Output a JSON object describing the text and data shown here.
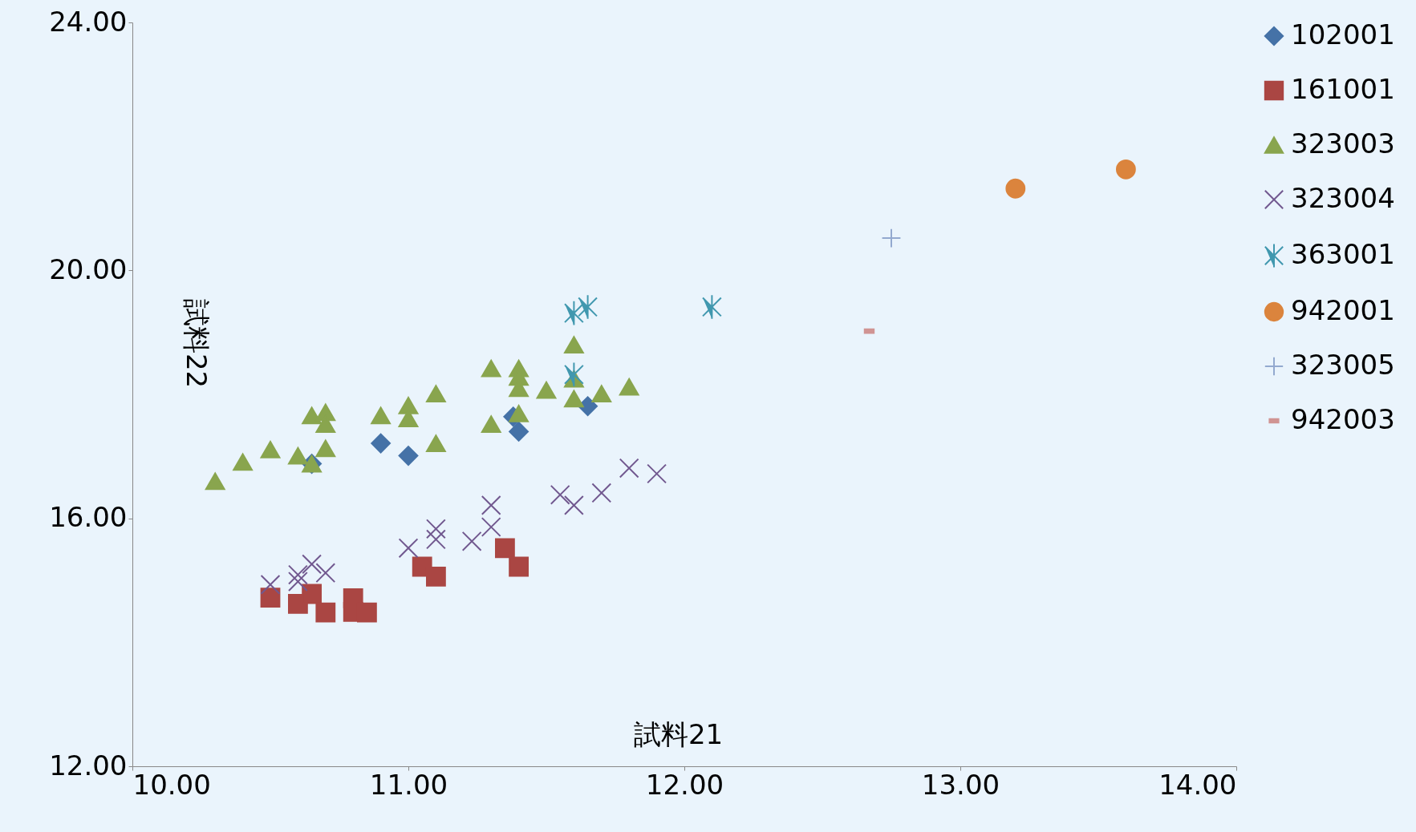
{
  "chart_data": {
    "type": "scatter",
    "xlabel": "試料21",
    "ylabel": "試料22",
    "legend": "right",
    "grid": false,
    "xlim": [
      10,
      14
    ],
    "xticks": [
      {
        "value": 10,
        "label": "10.00"
      },
      {
        "value": 11,
        "label": "11.00"
      },
      {
        "value": 12,
        "label": "12.00"
      },
      {
        "value": 13,
        "label": "13.00"
      },
      {
        "value": 14,
        "label": "14.00"
      }
    ],
    "ylim": [
      12,
      24
    ],
    "yticks": [
      {
        "value": 12,
        "label": "12.00"
      },
      {
        "value": 16,
        "label": "16.00"
      },
      {
        "value": 20,
        "label": "20.00"
      },
      {
        "value": 24,
        "label": "24.00"
      }
    ],
    "series": [
      {
        "name": "102001",
        "color": "#4572a7",
        "marker": "diamond",
        "x": [
          10.65,
          10.9,
          11.0,
          11.38,
          11.4,
          11.65
        ],
        "values": [
          16.88,
          17.21,
          17.01,
          17.64,
          17.4,
          17.81
        ]
      },
      {
        "name": "161001",
        "color": "#aa4643",
        "marker": "square",
        "x": [
          10.5,
          10.6,
          10.65,
          10.7,
          10.8,
          10.8,
          10.85,
          11.05,
          11.1,
          11.35,
          11.4
        ],
        "values": [
          14.72,
          14.62,
          14.78,
          14.48,
          14.71,
          14.49,
          14.48,
          15.22,
          15.06,
          15.52,
          15.22
        ]
      },
      {
        "name": "323003",
        "color": "#89a54e",
        "marker": "triangle",
        "x": [
          10.3,
          10.4,
          10.5,
          10.6,
          10.65,
          10.65,
          10.7,
          10.7,
          10.7,
          10.9,
          11.0,
          11.0,
          11.1,
          11.1,
          11.3,
          11.3,
          11.4,
          11.4,
          11.4,
          11.4,
          11.5,
          11.6,
          11.6,
          11.6,
          11.7,
          11.8
        ],
        "values": [
          16.6,
          16.91,
          17.11,
          17.01,
          16.88,
          17.66,
          17.71,
          17.52,
          17.13,
          17.66,
          17.82,
          17.61,
          18.01,
          17.21,
          18.42,
          17.52,
          18.42,
          18.28,
          18.1,
          17.69,
          18.07,
          18.8,
          18.25,
          17.93,
          18.01,
          18.12
        ]
      },
      {
        "name": "323004",
        "color": "#71588f",
        "marker": "cross",
        "x": [
          10.5,
          10.6,
          10.6,
          10.65,
          10.7,
          11.0,
          11.1,
          11.1,
          11.23,
          11.3,
          11.3,
          11.55,
          11.6,
          11.7,
          11.8,
          11.9
        ],
        "values": [
          14.93,
          15.09,
          14.98,
          15.26,
          15.12,
          15.52,
          15.83,
          15.66,
          15.63,
          16.21,
          15.86,
          16.38,
          16.21,
          16.41,
          16.81,
          16.72
        ]
      },
      {
        "name": "363001",
        "color": "#4198af",
        "x": [
          11.6,
          11.65,
          11.6,
          12.1
        ],
        "values": [
          19.31,
          19.41,
          18.32,
          19.41
        ]
      },
      {
        "name": "942001",
        "color": "#db843d",
        "marker": "circle",
        "x": [
          13.2,
          13.6
        ],
        "values": [
          21.32,
          21.63
        ]
      },
      {
        "name": "323005",
        "color": "#93a9cf",
        "x": [
          12.75
        ],
        "values": [
          20.52
        ]
      },
      {
        "name": "942003",
        "color": "#d09493",
        "x": [
          12.67
        ],
        "values": [
          19.02
        ]
      }
    ]
  }
}
